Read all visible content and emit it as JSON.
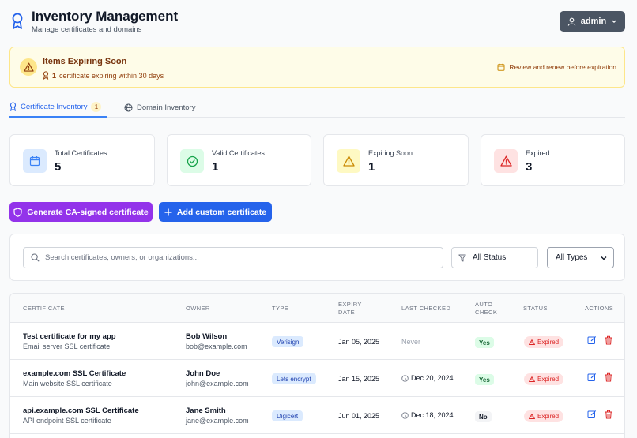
{
  "header": {
    "title": "Inventory Management",
    "subtitle": "Manage certificates and domains",
    "user_label": "admin"
  },
  "alert": {
    "title": "Items Expiring Soon",
    "count": "1",
    "message": "certificate expiring within 30 days",
    "action_text": "Review and renew before expiration"
  },
  "tabs": [
    {
      "label": "Certificate Inventory",
      "badge": "1",
      "active": true
    },
    {
      "label": "Domain Inventory",
      "active": false
    }
  ],
  "stats": [
    {
      "label": "Total Certificates",
      "value": "5",
      "icon": "calendar-icon",
      "color": "#3b82f6"
    },
    {
      "label": "Valid Certificates",
      "value": "1",
      "icon": "check-circle-icon",
      "color": "#16a34a"
    },
    {
      "label": "Expiring Soon",
      "value": "1",
      "icon": "warning-icon",
      "color": "#ca8a04"
    },
    {
      "label": "Expired",
      "value": "3",
      "icon": "alert-triangle-icon",
      "color": "#dc2626"
    }
  ],
  "actions": {
    "generate_label": "Generate CA-signed certificate",
    "add_label": "Add custom certificate"
  },
  "filters": {
    "search_placeholder": "Search certificates, owners, or organizations...",
    "status_value": "All Status",
    "type_value": "All Types"
  },
  "table": {
    "columns": {
      "certificate": "Certificate",
      "owner": "Owner",
      "type": "Type",
      "expiry_1": "Expiry",
      "expiry_2": "Date",
      "last_checked": "Last Checked",
      "auto_1": "Auto",
      "auto_2": "Check",
      "status": "Status",
      "actions": "Actions"
    },
    "rows": [
      {
        "title": "Test certificate for my app",
        "subtitle": "Email server SSL certificate",
        "owner": "Bob Wilson",
        "email": "bob@example.com",
        "type": "Verisign",
        "expiry": "Jan 05, 2025",
        "last_checked": "Never",
        "auto": "Yes",
        "status": "Expired"
      },
      {
        "title": "example.com SSL Certificate",
        "subtitle": "Main website SSL certificate",
        "owner": "John Doe",
        "email": "john@example.com",
        "type": "Lets encrypt",
        "expiry": "Jan 15, 2025",
        "last_checked": "Dec 20, 2024",
        "auto": "Yes",
        "status": "Expired"
      },
      {
        "title": "api.example.com SSL Certificate",
        "subtitle": "API endpoint SSL certificate",
        "owner": "Jane Smith",
        "email": "jane@example.com",
        "type": "Digicert",
        "expiry": "Jun 01, 2025",
        "last_checked": "Dec 18, 2024",
        "auto": "No",
        "status": "Expired"
      }
    ]
  }
}
